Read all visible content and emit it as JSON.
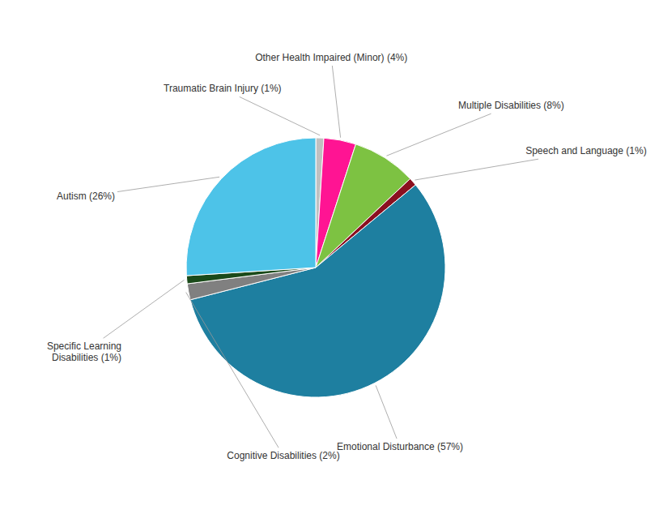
{
  "chart_data": {
    "type": "pie",
    "categories": [
      "Traumatic Brain Injury (1%)",
      "Other Health Impaired (Minor) (4%)",
      "Multiple Disabilities (8%)",
      "Speech and Language (1%)",
      "Emotional Disturbance (57%)",
      "Cognitive Disabilities (2%)",
      "Specific Learning\nDisabilities (1%)",
      "Autism (26%)"
    ],
    "values": [
      1,
      4,
      8,
      1,
      57,
      2,
      1,
      26
    ],
    "colors": [
      "#C0C0C0",
      "#FF1493",
      "#7DC242",
      "#8B1020",
      "#1E7FA0",
      "#808080",
      "#1A4A1A",
      "#4DC3E8"
    ]
  }
}
